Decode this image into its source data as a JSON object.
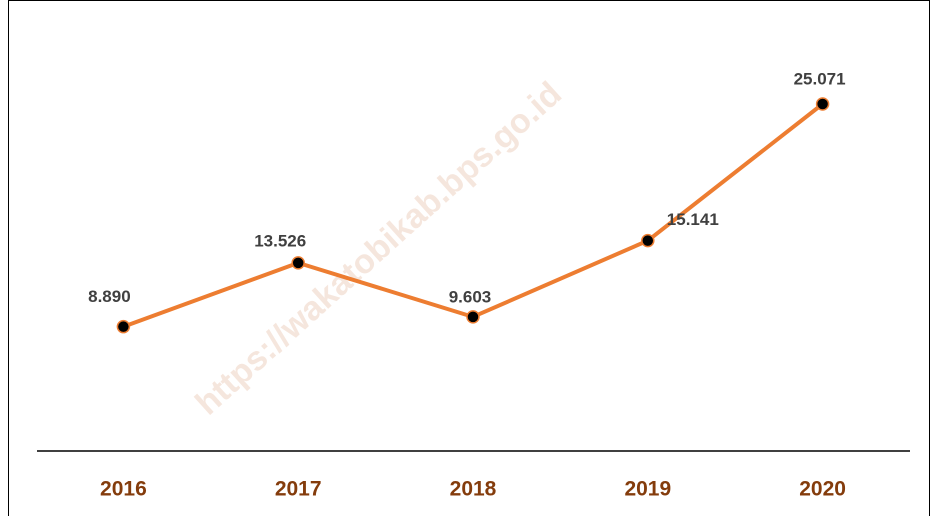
{
  "chart_data": {
    "type": "line",
    "categories": [
      "2016",
      "2017",
      "2018",
      "2019",
      "2020"
    ],
    "series": [
      {
        "color": "#ed7d31",
        "values": [
          8890,
          13526,
          9603,
          15141,
          25071
        ],
        "value_labels": [
          "8.890",
          "13.526",
          "9.603",
          "15.141",
          "25.071"
        ]
      }
    ],
    "marker_color": "#000000",
    "category_color": "#843c0c",
    "watermark": "https://wakatobikab.bps.go.id"
  }
}
